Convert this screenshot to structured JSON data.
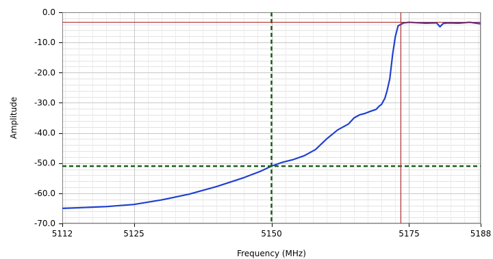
{
  "chart_data": {
    "type": "line",
    "xlabel": "Frequency (MHz)",
    "ylabel": "Amplitude",
    "xlim": [
      5112,
      5188
    ],
    "ylim": [
      -70,
      0
    ],
    "x_ticks": [
      {
        "value": 5112,
        "label": "5112"
      },
      {
        "value": 5125,
        "label": "5125"
      },
      {
        "value": 5150,
        "label": "5150"
      },
      {
        "value": 5175,
        "label": "5175"
      },
      {
        "value": 5188,
        "label": "5188"
      }
    ],
    "y_ticks": [
      {
        "value": 0,
        "label": "0.0"
      },
      {
        "value": -10,
        "label": "-10.0"
      },
      {
        "value": -20,
        "label": "-20.0"
      },
      {
        "value": -30,
        "label": "-30.0"
      },
      {
        "value": -40,
        "label": "-40.0"
      },
      {
        "value": -50,
        "label": "-50.0"
      },
      {
        "value": -60,
        "label": "-60.0"
      },
      {
        "value": -70,
        "label": "-70.0"
      }
    ],
    "grid": true,
    "minor_grid_y_step": 2,
    "series": [
      {
        "color": "#1f3fd0",
        "x": [
          5112,
          5115,
          5120,
          5125,
          5130,
          5135,
          5140,
          5145,
          5148,
          5150,
          5152,
          5154,
          5156,
          5158,
          5160,
          5162,
          5164,
          5165,
          5166,
          5167,
          5168,
          5169,
          5169.5,
          5170,
          5170.3,
          5170.6,
          5171,
          5171.5,
          5172,
          5172.5,
          5173,
          5174,
          5175,
          5178,
          5180,
          5180.6,
          5181.2,
          5182,
          5184,
          5186,
          5188
        ],
        "y": [
          -65,
          -64.8,
          -64.4,
          -63.7,
          -62.2,
          -60.3,
          -57.8,
          -54.8,
          -52.7,
          -51,
          -49.7,
          -48.8,
          -47.5,
          -45.5,
          -42,
          -39,
          -37,
          -35,
          -34,
          -33.5,
          -32.8,
          -32.2,
          -31.2,
          -30.5,
          -29.5,
          -28.5,
          -26,
          -22,
          -14,
          -8,
          -4.5,
          -3.5,
          -3.3,
          -3.6,
          -3.5,
          -4.8,
          -3.7,
          -3.5,
          -3.6,
          -3.3,
          -3.8
        ]
      }
    ],
    "cursors": [
      {
        "color": "#1a5e1a",
        "style": "dashed",
        "x": 5150,
        "y": -51
      },
      {
        "color": "#b03030",
        "style": "solid",
        "x": 5173.5,
        "y": -3.3
      }
    ]
  }
}
